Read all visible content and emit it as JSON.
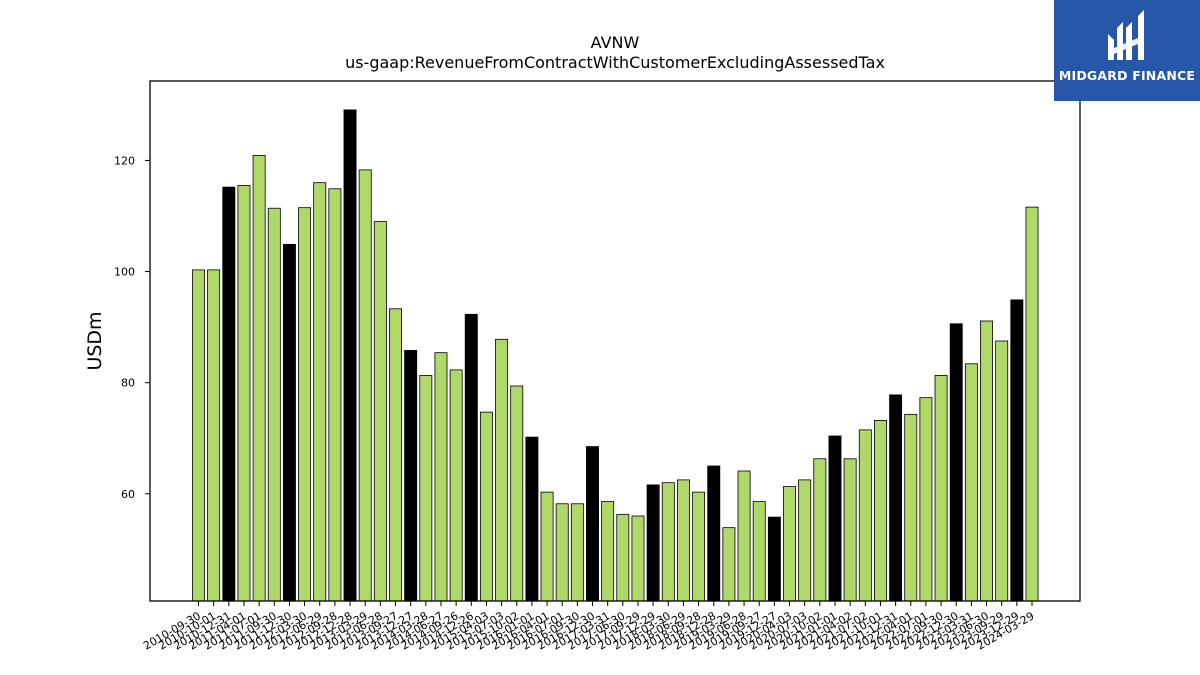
{
  "logo": {
    "text": "MIDGARD FINANCE",
    "icon": "midgard-logo-mark-icon",
    "background": "#2757a8"
  },
  "chart_data": {
    "type": "bar",
    "title": "AVNW",
    "subtitle": "us-gaap:RevenueFromContractWithCustomerExcludingAssessedTax",
    "xlabel": "",
    "ylabel": "USDm",
    "ylim": [
      40.7,
      134.3
    ],
    "yticks": [
      60,
      80,
      100,
      120
    ],
    "grid": false,
    "colors": {
      "quarter": "#b0d868",
      "fiscal_year_end": "#000000",
      "edge": "#000000"
    },
    "categories": [
      "2010-09-30",
      "2010-10-01",
      "2010-12-31",
      "2011-04-01",
      "2011-07-01",
      "2011-09-30",
      "2011-12-30",
      "2012-03-30",
      "2012-06-29",
      "2012-09-28",
      "2012-12-28",
      "2013-03-29",
      "2013-06-28",
      "2013-09-27",
      "2013-12-27",
      "2014-03-28",
      "2014-06-27",
      "2014-09-26",
      "2014-12-26",
      "2015-04-03",
      "2015-07-03",
      "2015-10-02",
      "2016-01-01",
      "2016-04-01",
      "2016-07-01",
      "2016-09-30",
      "2016-12-30",
      "2017-03-31",
      "2017-06-30",
      "2017-09-29",
      "2017-12-29",
      "2018-03-30",
      "2018-06-29",
      "2018-09-28",
      "2018-12-28",
      "2019-03-29",
      "2019-06-28",
      "2019-09-27",
      "2019-12-27",
      "2020-04-03",
      "2020-07-03",
      "2020-10-02",
      "2021-01-01",
      "2021-04-02",
      "2021-07-02",
      "2021-10-01",
      "2021-12-31",
      "2022-04-01",
      "2022-07-01",
      "2022-09-30",
      "2022-12-30",
      "2023-03-31",
      "2023-06-30",
      "2023-09-29",
      "2023-12-29",
      "2024-03-29"
    ],
    "values": [
      100.3,
      100.3,
      115.2,
      115.5,
      120.9,
      111.4,
      104.9,
      111.5,
      116.0,
      114.9,
      129.1,
      118.3,
      109.0,
      93.3,
      85.8,
      81.3,
      85.4,
      82.3,
      92.3,
      74.7,
      87.8,
      79.4,
      70.2,
      60.3,
      58.2,
      58.2,
      68.5,
      58.6,
      56.3,
      56.0,
      61.6,
      62.0,
      62.5,
      60.3,
      65.0,
      53.9,
      64.1,
      58.6,
      55.8,
      61.3,
      62.5,
      66.3,
      70.4,
      66.3,
      71.5,
      73.2,
      77.8,
      74.3,
      77.3,
      81.3,
      90.6,
      83.4,
      91.1,
      87.5,
      94.9,
      111.6
    ],
    "highlight": [
      false,
      false,
      true,
      false,
      false,
      false,
      true,
      false,
      false,
      false,
      true,
      false,
      false,
      false,
      true,
      false,
      false,
      false,
      true,
      false,
      false,
      false,
      true,
      false,
      false,
      false,
      true,
      false,
      false,
      false,
      true,
      false,
      false,
      false,
      true,
      false,
      false,
      false,
      true,
      false,
      false,
      false,
      true,
      false,
      false,
      false,
      true,
      false,
      false,
      false,
      true,
      false,
      false,
      false,
      true,
      false
    ]
  }
}
